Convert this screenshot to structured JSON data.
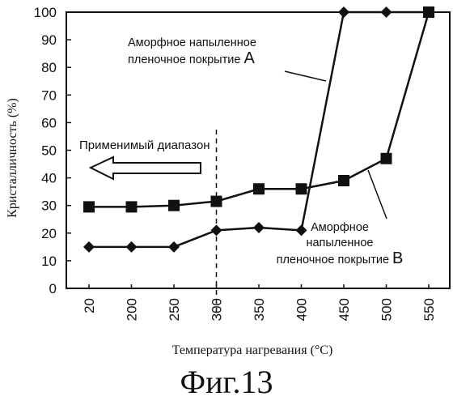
{
  "figure": {
    "caption": "Фиг.13"
  },
  "annotations": {
    "series_a_line1": "Аморфное напыленное",
    "series_a_line2": "пленочное покрытие",
    "series_a_tag": "A",
    "series_b_line1": "Аморфное",
    "series_b_line2": "напыленное",
    "series_b_line3": "пленочное покрытие",
    "series_b_tag": "B",
    "applicable_range": "Применимый диапазон"
  },
  "chart_data": {
    "type": "line",
    "title": "",
    "xlabel": "Температура нагревания (°C)",
    "ylabel": "Кристалличность (%)",
    "categories": [
      "20",
      "200",
      "250",
      "300",
      "350",
      "400",
      "450",
      "500",
      "550"
    ],
    "ylim": [
      0,
      100
    ],
    "yticks": [
      0,
      10,
      20,
      30,
      40,
      50,
      60,
      70,
      80,
      90,
      100
    ],
    "grid": false,
    "series": [
      {
        "name": "Аморфное напыленное пленочное покрытие A",
        "marker": "diamond",
        "values": [
          15,
          15,
          15,
          21,
          22,
          21,
          100,
          100,
          100
        ]
      },
      {
        "name": "Аморфное напыленное пленочное покрытие B",
        "marker": "square",
        "values": [
          29.5,
          29.5,
          30,
          31.5,
          36,
          36,
          39,
          47,
          100
        ]
      }
    ],
    "reference_line": {
      "at_category": "300",
      "style": "dashed",
      "label": "Применимый диапазон",
      "arrow": "left"
    }
  }
}
